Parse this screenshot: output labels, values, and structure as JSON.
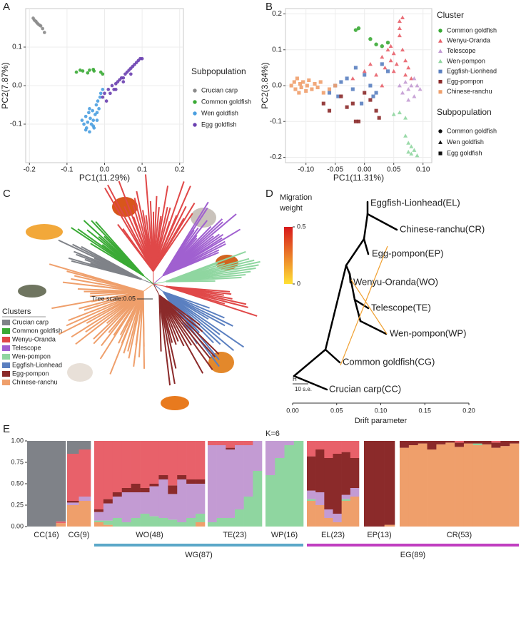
{
  "panel_labels": [
    "A",
    "B",
    "C",
    "D",
    "E"
  ],
  "chart_data": [
    {
      "type": "scatter",
      "xlabel": "PC1(11.29%)",
      "ylabel": "PC2(7.87%)",
      "legend_title": "Subpopulation",
      "xlim": [
        -0.21,
        0.21
      ],
      "ylim": [
        -0.2,
        0.2
      ],
      "xticks": [
        -0.2,
        -0.1,
        {
          "value": 0,
          "label": "0.0"
        },
        0.1,
        0.2
      ],
      "yticks": [
        -0.1,
        {
          "value": 0,
          "label": "0.0"
        },
        0.1
      ],
      "grid": true,
      "series": [
        {
          "name": "Crucian carp",
          "color": "#8a8a8a",
          "shape": "circle",
          "x": [
            -0.19,
            -0.187,
            -0.183,
            -0.18,
            -0.177,
            -0.173,
            -0.17,
            -0.165,
            -0.16
          ],
          "y": [
            0.175,
            0.17,
            0.167,
            0.163,
            0.16,
            0.157,
            0.155,
            0.148,
            0.138
          ]
        },
        {
          "name": "Common goldfish",
          "color": "#3aaa35",
          "shape": "circle",
          "x": [
            -0.075,
            -0.065,
            -0.058,
            -0.045,
            -0.04,
            -0.03,
            -0.028,
            -0.01,
            -0.005
          ],
          "y": [
            0.035,
            0.04,
            0.038,
            0.033,
            0.04,
            0.042,
            0.038,
            0.035,
            0.03
          ]
        },
        {
          "name": "Wen goldfish",
          "color": "#4a9fe0",
          "shape": "circle",
          "x": [
            -0.06,
            -0.055,
            -0.05,
            -0.048,
            -0.045,
            -0.042,
            -0.04,
            -0.038,
            -0.035,
            -0.032,
            -0.03,
            -0.028,
            -0.025,
            -0.022,
            -0.02,
            -0.018,
            -0.015,
            -0.012,
            -0.01,
            -0.005,
            -0.03,
            -0.04,
            -0.05,
            -0.02
          ],
          "y": [
            -0.09,
            -0.1,
            -0.08,
            -0.11,
            -0.095,
            -0.07,
            -0.12,
            -0.085,
            -0.1,
            -0.065,
            -0.09,
            -0.11,
            -0.075,
            -0.05,
            -0.09,
            -0.04,
            -0.06,
            -0.03,
            -0.02,
            -0.01,
            -0.105,
            -0.06,
            -0.115,
            -0.07
          ]
        },
        {
          "name": "Egg goldfish",
          "color": "#6a3fb0",
          "shape": "circle",
          "x": [
            -0.005,
            0,
            0.005,
            0.01,
            0.015,
            0.02,
            0.025,
            0.03,
            0.035,
            0.04,
            0.045,
            0.05,
            0.055,
            0.06,
            0.065,
            0.07,
            0.075,
            0.08,
            0.085,
            0.09,
            0.095,
            0.1,
            0.03,
            0.05,
            0.07
          ],
          "y": [
            -0.03,
            -0.02,
            -0.04,
            -0.01,
            -0.02,
            0,
            -0.01,
            0.005,
            0.01,
            0.015,
            0.02,
            0.02,
            0.03,
            0.035,
            0.04,
            0.045,
            0.05,
            0.055,
            0.06,
            0.065,
            0.07,
            0.07,
            -0.01,
            0.01,
            0.03
          ]
        }
      ]
    },
    {
      "type": "scatter",
      "xlabel": "PC1(11.31%)",
      "ylabel": "PC2(3.84%)",
      "legend_title": "Cluster",
      "shape_legend_title": "Subpopulation",
      "shape_legend": [
        {
          "name": "Common goldfish",
          "shape": "circle"
        },
        {
          "name": "Wen goldfish",
          "shape": "triangle"
        },
        {
          "name": "Egg goldfish",
          "shape": "square"
        }
      ],
      "xlim": [
        -0.135,
        0.115
      ],
      "ylim": [
        -0.215,
        0.215
      ],
      "xticks": [
        {
          "value": -0.1,
          "label": "-0.10"
        },
        {
          "value": -0.05,
          "label": "-0.05"
        },
        {
          "value": 0,
          "label": "0.00"
        },
        {
          "value": 0.05,
          "label": "0.05"
        },
        {
          "value": 0.1,
          "label": "0.10"
        }
      ],
      "yticks": [
        -0.2,
        -0.1,
        {
          "value": 0,
          "label": "0.0"
        },
        0.1,
        0.2
      ],
      "grid": true,
      "series": [
        {
          "name": "Common goldfish",
          "color": "#3aaa35",
          "shape": "circle",
          "x": [
            -0.015,
            -0.01,
            0.01,
            0.02,
            0.03,
            0.04
          ],
          "y": [
            0.155,
            0.16,
            0.13,
            0.115,
            0.11,
            0.12
          ]
        },
        {
          "name": "Wenyu-Oranda",
          "color": "#e8616a",
          "shape": "triangle",
          "x": [
            -0.02,
            0,
            0.01,
            0.02,
            0.03,
            0.035,
            0.04,
            0.045,
            0.05,
            0.05,
            0.055,
            0.06,
            0.06,
            0.065,
            0.07,
            0.07,
            0.075,
            0.08,
            0.065,
            0.06,
            0.045,
            0.03
          ],
          "y": [
            0.02,
            0.04,
            0.06,
            0.03,
            0.08,
            0.05,
            0.1,
            0.07,
            0.09,
            0.04,
            0.06,
            0.18,
            0.14,
            0.1,
            0.07,
            0.03,
            0.05,
            0.02,
            0.19,
            0.16,
            0.11,
            0
          ]
        },
        {
          "name": "Telescope",
          "color": "#c39bd3",
          "shape": "triangle",
          "x": [
            0.06,
            0.065,
            0.07,
            0.075,
            0.08,
            0.085,
            0.09,
            0.095,
            0.085,
            0.075
          ],
          "y": [
            0,
            -0.02,
            0.01,
            -0.01,
            0,
            -0.03,
            0,
            -0.01,
            0.02,
            -0.04
          ]
        },
        {
          "name": "Wen-pompon",
          "color": "#8fd6a0",
          "shape": "triangle",
          "x": [
            0.05,
            0.06,
            0.07,
            0.075,
            0.08,
            0.085,
            0.07,
            0.08,
            0.09,
            0.075
          ],
          "y": [
            -0.08,
            -0.075,
            -0.09,
            -0.16,
            -0.17,
            -0.18,
            -0.14,
            -0.19,
            -0.195,
            -0.185
          ]
        },
        {
          "name": "Eggfish-Lionhead",
          "color": "#5a7fc0",
          "shape": "square",
          "x": [
            -0.06,
            -0.05,
            -0.045,
            -0.04,
            -0.03,
            -0.02,
            -0.015,
            0,
            0.01,
            0.02,
            0.03,
            0.04,
            -0.005,
            0.015
          ],
          "y": [
            -0.02,
            0,
            -0.03,
            0.01,
            0.02,
            -0.01,
            0.05,
            0.03,
            0,
            -0.02,
            0.06,
            0.04,
            -0.05,
            -0.03
          ]
        },
        {
          "name": "Egg-pompon",
          "color": "#8b2a2a",
          "shape": "square",
          "x": [
            -0.07,
            -0.06,
            -0.04,
            -0.03,
            -0.015,
            -0.01,
            0,
            0.01,
            0.02,
            0.025,
            -0.02
          ],
          "y": [
            -0.05,
            -0.07,
            -0.03,
            -0.06,
            -0.1,
            -0.1,
            -0.02,
            -0.04,
            -0.07,
            -0.09,
            -0.05
          ]
        },
        {
          "name": "Chinese-ranchu",
          "color": "#ef9f6b",
          "shape": "square",
          "x": [
            -0.125,
            -0.12,
            -0.118,
            -0.115,
            -0.112,
            -0.11,
            -0.108,
            -0.105,
            -0.1,
            -0.098,
            -0.095,
            -0.09,
            -0.085,
            -0.08,
            -0.075,
            -0.07,
            -0.06,
            -0.05
          ],
          "y": [
            0,
            0.01,
            -0.01,
            0.02,
            -0.02,
            0.005,
            -0.005,
            0.01,
            -0.015,
            0,
            0.015,
            -0.01,
            0.005,
            -0.005,
            0.01,
            -0.02,
            -0.01,
            0
          ]
        }
      ]
    },
    {
      "type": "treemix",
      "xlabel": "Drift parameter",
      "xlim": [
        0,
        0.2
      ],
      "xticks": [
        {
          "value": 0,
          "label": "0.00"
        },
        {
          "value": 0.05,
          "label": "0.05"
        },
        {
          "value": 0.1,
          "label": "0.10"
        },
        {
          "value": 0.15,
          "label": "0.15"
        },
        {
          "value": 0.2,
          "label": "0.20"
        }
      ],
      "legend_title": [
        "Migration",
        "weight"
      ],
      "colorbar_lim": [
        0,
        0.5
      ],
      "colorbar_ticks": [
        0.5,
        0
      ],
      "colorbar_colors": [
        "#ffe135",
        "#d7191c"
      ],
      "migration_color": "#f0a030",
      "nodes": [
        "Eggfish-Lionhead(EL)",
        "Chinese-ranchu(CR)",
        "Egg-pompon(EP)",
        "Wenyu-Oranda(WO)",
        "Telescope(TE)",
        "Wen-pompon(WP)",
        "Common goldfish(CG)",
        "Crucian carp(CC)"
      ],
      "root_label": "H",
      "scale_label": "10 s.e."
    },
    {
      "type": "stacked_bar",
      "title": "K=6",
      "ylim": [
        0,
        1
      ],
      "yticks": [
        {
          "value": 0,
          "label": "0.00"
        },
        {
          "value": 0.25,
          "label": "0.25"
        },
        {
          "value": 0.5,
          "label": "0.50"
        },
        {
          "value": 0.75,
          "label": "0.75"
        },
        {
          "value": 1,
          "label": "1.00"
        }
      ],
      "categories": [
        null,
        null,
        null,
        null,
        null,
        null,
        null,
        null,
        null,
        null,
        null,
        null,
        null,
        null,
        null,
        null,
        null,
        null,
        null,
        null,
        null,
        null,
        null,
        null,
        null,
        null,
        null,
        null,
        null,
        null,
        null,
        null,
        null,
        null,
        null,
        null,
        null,
        null,
        null,
        null,
        null,
        null,
        null,
        null,
        null,
        null,
        null,
        null,
        null,
        null
      ],
      "groups": [
        "CC(16)",
        "CG(9)",
        "WO(48)",
        "TE(23)",
        "WP(16)",
        "EL(23)",
        "EP(13)",
        "CR(53)"
      ],
      "supergroups": [
        "WG(87)",
        "EG(89)"
      ],
      "series": [
        {
          "color": "#ef9f6b",
          "values": [
            0,
            0,
            0,
            0.04,
            0.25,
            0.3,
            0.05,
            0.02,
            0,
            0,
            0,
            0,
            0,
            0,
            0,
            0,
            0,
            0.05,
            0,
            0,
            0,
            0,
            0,
            0,
            0,
            0,
            0,
            0,
            0.3,
            0.25,
            0.1,
            0.05,
            0.3,
            0.35,
            0,
            0,
            0.02,
            0.92,
            0.95,
            0.97,
            0.9,
            0.96,
            0.98,
            0.93,
            0.97,
            0.95,
            0.96,
            0.92,
            0.94,
            0.97
          ]
        },
        {
          "color": "#8fd6a0",
          "values": [
            0,
            0,
            0,
            0,
            0,
            0,
            0.02,
            0.05,
            0.1,
            0.05,
            0.1,
            0.15,
            0.12,
            0.1,
            0.08,
            0.05,
            0.1,
            0.1,
            0.05,
            0.1,
            0.1,
            0.2,
            0.35,
            0.65,
            0.6,
            0.8,
            0.95,
            1,
            0.02,
            0,
            0,
            0,
            0.02,
            0,
            0,
            0,
            0,
            0,
            0,
            0,
            0,
            0,
            0,
            0,
            0,
            0.02,
            0,
            0,
            0,
            0
          ]
        },
        {
          "color": "#c39bd3",
          "values": [
            0,
            0,
            0,
            0,
            0.03,
            0.05,
            0.1,
            0.2,
            0.25,
            0.35,
            0.3,
            0.25,
            0.35,
            0.45,
            0.3,
            0.5,
            0.4,
            0.35,
            0.9,
            0.85,
            0.8,
            0.75,
            0.6,
            0.35,
            0.4,
            0.2,
            0.05,
            0,
            0.1,
            0.15,
            0.1,
            0.1,
            0.05,
            0.1,
            0,
            0,
            0,
            0,
            0,
            0,
            0,
            0,
            0,
            0,
            0,
            0,
            0,
            0,
            0,
            0
          ]
        },
        {
          "color": "#8b2a2a",
          "values": [
            0,
            0,
            0,
            0,
            0.02,
            0,
            0.03,
            0.05,
            0.05,
            0.05,
            0.1,
            0.05,
            0.03,
            0.05,
            0.1,
            0.05,
            0.05,
            0.05,
            0,
            0,
            0.02,
            0,
            0,
            0,
            0,
            0,
            0,
            0,
            0.4,
            0.5,
            0.6,
            0.7,
            0.5,
            0.35,
            1,
            1,
            0.98,
            0.08,
            0.05,
            0.03,
            0.1,
            0.04,
            0.02,
            0.05,
            0.03,
            0.03,
            0.04,
            0.06,
            0.06,
            0.03
          ]
        },
        {
          "color": "#e8616a",
          "values": [
            0,
            0,
            0,
            0.02,
            0.55,
            0.55,
            0.8,
            0.68,
            0.6,
            0.55,
            0.5,
            0.55,
            0.5,
            0.4,
            0.52,
            0.4,
            0.45,
            0.45,
            0.05,
            0.05,
            0.08,
            0.05,
            0.05,
            0,
            0,
            0,
            0,
            0,
            0.18,
            0.1,
            0.2,
            0.15,
            0.13,
            0.2,
            0,
            0,
            0,
            0,
            0,
            0,
            0,
            0,
            0,
            0.02,
            0,
            0,
            0,
            0.02,
            0,
            0
          ]
        },
        {
          "color": "#7f8288",
          "values": [
            1,
            1,
            1,
            0.94,
            0.15,
            0.1,
            0,
            0,
            0,
            0,
            0,
            0,
            0,
            0,
            0,
            0,
            0,
            0,
            0,
            0,
            0,
            0,
            0,
            0,
            0,
            0,
            0,
            0,
            0,
            0,
            0,
            0,
            0,
            0,
            0,
            0,
            0,
            0,
            0,
            0,
            0,
            0,
            0,
            0,
            0,
            0,
            0,
            0,
            0,
            0
          ]
        }
      ]
    }
  ],
  "tree": {
    "scale_label": "Tree scale:0.05",
    "legend_title": "Clusters",
    "clusters": [
      {
        "name": "Crucian carp",
        "color": "#7f8288"
      },
      {
        "name": "Common goldfish",
        "color": "#3aaa35"
      },
      {
        "name": "Wenyu-Oranda",
        "color": "#e04848"
      },
      {
        "name": "Telescope",
        "color": "#a060d0"
      },
      {
        "name": "Wen-pompon",
        "color": "#8fd6a0"
      },
      {
        "name": "Eggfish-Lionhead",
        "color": "#5a7fc0"
      },
      {
        "name": "Egg-pompon",
        "color": "#8b2a2a"
      },
      {
        "name": "Chinese-ranchu",
        "color": "#ef9f6b"
      }
    ]
  }
}
